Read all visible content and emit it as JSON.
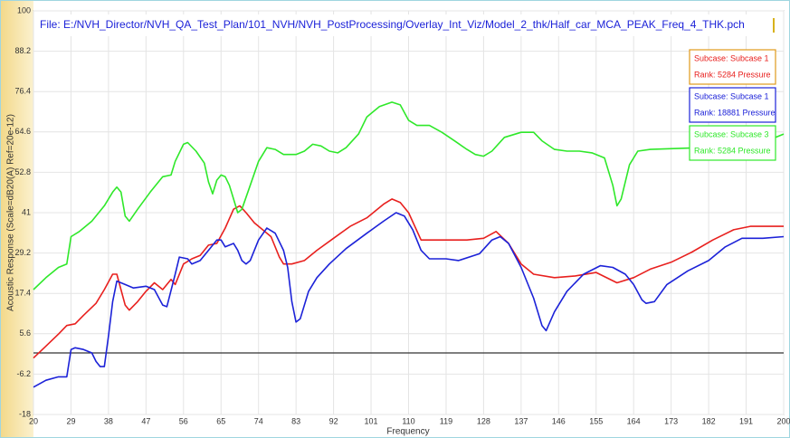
{
  "chart_data": {
    "type": "line",
    "title": "File: E:/NVH_Director/NVH_QA_Test_Plan/101_NVH/NVH_PostProcessing/Overlay_Int_Viz/Model_2_thk/Half_car_MCA_PEAK_Freq_4_THK.pch",
    "x_label": "Frequency",
    "y_label": "Acoustic Response (Scale=dB20(A) Ref=20e-12)",
    "xlim": [
      20,
      200
    ],
    "xticks": [
      20,
      29,
      38,
      47,
      56,
      65,
      74,
      83,
      92,
      101,
      110,
      119,
      128,
      137,
      146,
      155,
      164,
      173,
      182,
      191,
      200
    ],
    "ylim": [
      -18,
      100
    ],
    "yticks": [
      -18,
      -6.2,
      5.6,
      17.4,
      29.2,
      41,
      52.8,
      64.6,
      76.4,
      88.2,
      100
    ],
    "hline": 0,
    "grid": true,
    "series": [
      {
        "name": "Subcase: Subcase 1",
        "rank": "Rank: 5284 Pressure",
        "color": "#e8201e",
        "x": [
          20,
          23,
          26,
          28,
          30,
          32,
          35,
          37,
          39,
          40,
          42,
          43,
          45,
          47,
          49,
          51,
          53,
          54,
          56,
          58,
          60,
          62,
          64,
          66,
          68,
          69.5,
          71,
          73,
          75,
          77,
          79,
          80,
          82,
          85,
          88,
          92,
          96,
          100,
          104,
          106,
          108,
          110,
          113,
          116,
          120,
          124,
          128,
          131,
          134,
          137,
          140,
          145,
          150,
          155,
          160,
          164,
          168,
          173,
          178,
          183,
          188,
          192,
          200
        ],
        "values": [
          -1.5,
          2,
          5.5,
          8,
          8.5,
          11,
          14.5,
          18.5,
          23,
          23,
          14,
          12.5,
          15,
          18,
          20.5,
          18.5,
          21.5,
          20,
          26,
          27.5,
          28.5,
          31.5,
          32,
          36.5,
          42,
          43,
          41,
          38,
          36,
          34,
          28,
          26,
          26,
          27,
          30,
          33.5,
          37,
          39.5,
          43.5,
          45,
          44,
          41,
          33,
          33,
          33,
          33,
          33.5,
          35.5,
          32,
          26,
          23,
          22,
          22.5,
          23.5,
          20.5,
          22,
          24.5,
          26.5,
          29.5,
          33,
          36,
          37,
          37
        ]
      },
      {
        "name": "Subcase: Subcase 1",
        "rank": "Rank: 18881 Pressure",
        "color": "#1c22d8",
        "x": [
          20,
          23,
          26,
          28,
          29,
          30,
          32,
          34,
          35,
          36,
          37,
          38,
          39,
          40,
          42,
          44,
          47,
          49,
          51,
          52,
          54,
          55,
          57,
          58,
          60,
          62,
          64,
          65,
          66,
          68,
          69,
          70,
          71,
          72,
          74,
          76,
          78,
          80,
          81,
          82,
          83,
          84,
          86,
          88,
          91,
          95,
          100,
          104,
          107,
          109,
          111,
          113,
          115,
          119,
          122,
          127,
          130,
          132,
          134,
          137,
          140,
          142,
          143,
          145,
          148,
          152,
          156,
          159,
          162,
          164,
          166,
          167,
          169,
          172,
          177,
          182,
          186,
          190,
          195,
          200
        ],
        "values": [
          -10,
          -8,
          -7,
          -7,
          1,
          1.5,
          1,
          0,
          -2.5,
          -4,
          -4,
          5,
          15,
          21,
          20,
          19,
          19.5,
          18.5,
          14,
          13.5,
          23,
          28,
          27.5,
          26,
          27,
          30,
          33,
          33,
          31,
          32,
          30,
          27,
          26,
          27,
          33,
          36.5,
          35,
          30,
          25,
          15,
          9,
          10,
          18,
          22,
          26,
          30.5,
          35,
          38.5,
          41,
          40,
          36,
          30,
          27.5,
          27.5,
          27,
          29,
          33,
          34,
          32,
          25,
          16,
          8,
          6.5,
          12,
          18,
          23,
          25.5,
          25,
          23,
          20,
          15.5,
          14.5,
          15,
          20,
          24,
          27,
          31,
          33.5,
          33.5,
          34
        ]
      },
      {
        "name": "Subcase: Subcase 3",
        "rank": "Rank: 5284 Pressure",
        "color": "#2fe82a",
        "x": [
          20,
          23,
          26,
          28,
          29,
          31,
          34,
          37,
          39,
          40,
          41,
          42,
          43,
          45,
          48,
          51,
          53,
          54,
          56,
          57,
          59,
          61,
          62,
          63,
          64,
          65,
          66,
          67,
          68,
          69,
          70,
          72,
          74,
          76,
          78,
          80,
          83,
          85,
          87,
          89,
          91,
          93,
          95,
          98,
          100,
          103,
          106,
          108,
          110,
          112,
          115,
          118,
          121,
          124,
          126,
          128,
          130,
          133,
          137,
          140,
          142,
          145,
          148,
          151,
          154,
          157,
          159,
          160,
          161,
          163,
          165,
          168,
          180,
          190,
          196,
          200
        ],
        "values": [
          18.5,
          22,
          25,
          26,
          34,
          35.5,
          38.5,
          43,
          47,
          48.5,
          47,
          40,
          38.5,
          42,
          47,
          51.5,
          52,
          56,
          61,
          61.5,
          59,
          55.5,
          50,
          46.5,
          50.5,
          52,
          51.5,
          49,
          45,
          41,
          42,
          49,
          56,
          60,
          59.5,
          58,
          58,
          59,
          61,
          60.5,
          59,
          58.5,
          60,
          64,
          69,
          72,
          73.3,
          72.5,
          68,
          66.5,
          66.5,
          64.5,
          62,
          59.5,
          58,
          57.5,
          59,
          63,
          64.5,
          64.5,
          62,
          59.5,
          59,
          59,
          58.5,
          57,
          49,
          43,
          45,
          55,
          59,
          59.5,
          60,
          61,
          62,
          64
        ]
      }
    ]
  }
}
